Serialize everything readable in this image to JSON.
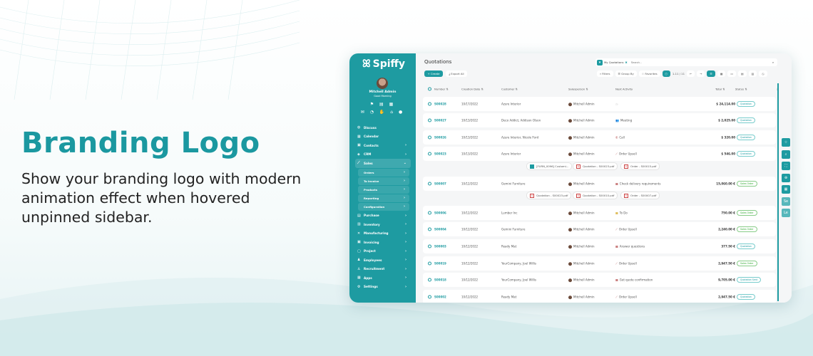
{
  "hero": {
    "title": "Branding Logo",
    "description": "Show your branding logo with modern animation effect when hovered unpinned sidebar."
  },
  "colors": {
    "brand": "#1e9ba1",
    "title": "#1b98a0"
  },
  "sidebar": {
    "logo": "Spiffy",
    "user_name": "Mitchell Admin",
    "greeting": "Good Morning",
    "items": [
      {
        "label": "Discuss",
        "icon": "chat-icon"
      },
      {
        "label": "Calendar",
        "icon": "calendar-icon"
      },
      {
        "label": "Contacts",
        "icon": "contacts-icon"
      },
      {
        "label": "CRM",
        "icon": "crm-icon"
      },
      {
        "label": "Sales",
        "icon": "sales-icon"
      }
    ],
    "sales_sub": [
      "Orders",
      "To Invoice",
      "Products",
      "Reporting",
      "Configuration"
    ],
    "items2": [
      {
        "label": "Purchase",
        "icon": "purchase-icon"
      },
      {
        "label": "Inventory",
        "icon": "inventory-icon"
      },
      {
        "label": "Manufacturing",
        "icon": "manufacturing-icon"
      },
      {
        "label": "Invoicing",
        "icon": "invoicing-icon"
      },
      {
        "label": "Project",
        "icon": "project-icon"
      },
      {
        "label": "Employees",
        "icon": "employees-icon"
      },
      {
        "label": "Recruitment",
        "icon": "recruitment-icon"
      },
      {
        "label": "Apps",
        "icon": "apps-icon"
      },
      {
        "label": "Settings",
        "icon": "settings-icon"
      }
    ]
  },
  "main": {
    "title": "Quotations",
    "create": "+ Create",
    "export": "Export All",
    "facet": "My Quotations",
    "search_placeholder": "Search...",
    "filters": "Filters",
    "group_by": "Group By",
    "favorites": "Favorites",
    "pager": "1-11 / 11",
    "columns": [
      "Number",
      "Creation Date",
      "Customer",
      "Salesperson",
      "Next Activity",
      "Total",
      "Status"
    ],
    "rows": [
      {
        "number": "S00028",
        "date": "10/17/2022",
        "customer": "Azure Interior",
        "salesperson": "Mitchell Admin",
        "activity": "",
        "total": "$ 24,114.00",
        "status": "Quotation"
      },
      {
        "number": "S00027",
        "date": "10/13/2022",
        "customer": "Deco Addict, Addison Olson",
        "salesperson": "Mitchell Admin",
        "activity": "Meeting",
        "total": "$ 2,025.00",
        "status": "Quotation"
      },
      {
        "number": "S00026",
        "date": "10/13/2022",
        "customer": "Azure Interior, Nicole Ford",
        "salesperson": "Mitchell Admin",
        "activity": "Call",
        "total": "$ 320.00",
        "status": "Quotation"
      },
      {
        "number": "S00023",
        "date": "10/13/2022",
        "customer": "Azure Interior",
        "salesperson": "Mitchell Admin",
        "activity": "Order Upsell",
        "total": "$ 546.00",
        "status": "Quotation"
      },
      {
        "number": "S00007",
        "date": "10/12/2022",
        "customer": "Gemini Furniture",
        "salesperson": "Mitchell Admin",
        "activity": "Check delivery requirements",
        "total": "15,060.00 €",
        "status": "Sales Order"
      },
      {
        "number": "S00006",
        "date": "10/12/2022",
        "customer": "Lumber Inc",
        "salesperson": "Mitchell Admin",
        "activity": "To Do",
        "total": "750.00 €",
        "status": "Sales Order"
      },
      {
        "number": "S00004",
        "date": "10/12/2022",
        "customer": "Gemini Furniture",
        "salesperson": "Mitchell Admin",
        "activity": "Order Upsell",
        "total": "2,240.00 €",
        "status": "Sales Order"
      },
      {
        "number": "S00003",
        "date": "10/12/2022",
        "customer": "Ready Mat",
        "salesperson": "Mitchell Admin",
        "activity": "Answer questions",
        "total": "377.50 €",
        "status": "Quotation"
      },
      {
        "number": "S00019",
        "date": "10/12/2022",
        "customer": "YourCompany, Joel Willis",
        "salesperson": "Mitchell Admin",
        "activity": "Order Upsell",
        "total": "2,947.50 €",
        "status": "Sales Order"
      },
      {
        "number": "S00018",
        "date": "10/12/2022",
        "customer": "YourCompany, Joel Willis",
        "salesperson": "Mitchell Admin",
        "activity": "Get quote confirmation",
        "total": "9,705.00 €",
        "status": "Quotation Sent"
      },
      {
        "number": "S00002",
        "date": "10/12/2022",
        "customer": "Ready Mat",
        "salesperson": "Mitchell Admin",
        "activity": "Order Upsell",
        "total": "2,947.50 €",
        "status": "Quotation"
      }
    ],
    "attachments1": [
      "[FURN_0096] Customi...",
      "Quotation - S00023.pdf",
      "Order - S00015.pdf"
    ],
    "attachments2": [
      "Quotation - S00023.pdf",
      "Quotation - S00010.pdf",
      "Order - S00007.pdf"
    ],
    "side_buttons": [
      "",
      "",
      "",
      "",
      "",
      "Se",
      "Le"
    ]
  }
}
